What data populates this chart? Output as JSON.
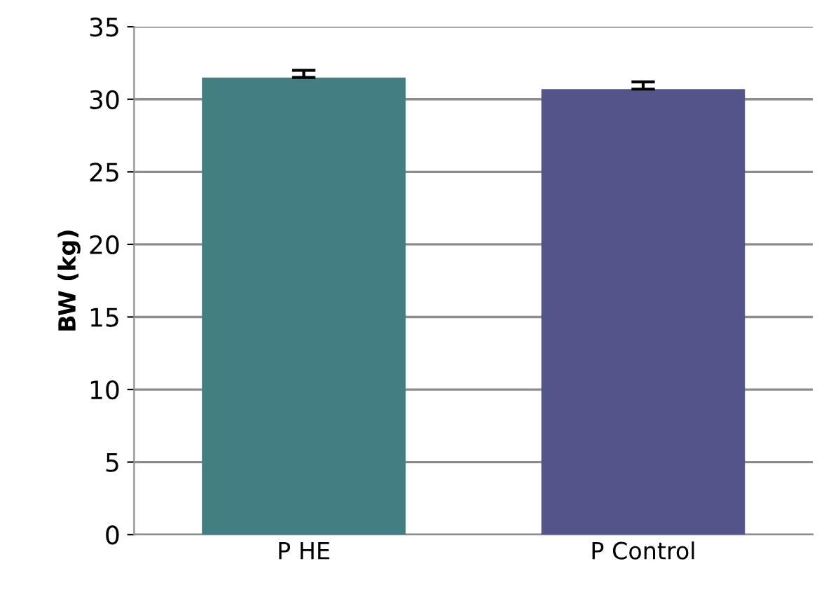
{
  "chart_data": {
    "type": "bar",
    "ylabel": "BW (kg)",
    "categories": [
      "P HE",
      "P Control"
    ],
    "values": [
      31.5,
      30.7
    ],
    "colors": [
      "#437e83",
      "#535489"
    ],
    "errors": [
      [
        31.5,
        32.0
      ],
      [
        30.7,
        31.2
      ]
    ],
    "ylim": [
      0,
      35
    ],
    "yticks": [
      0,
      5,
      10,
      15,
      20,
      25,
      30,
      35
    ],
    "grid": "y",
    "legend": false
  }
}
